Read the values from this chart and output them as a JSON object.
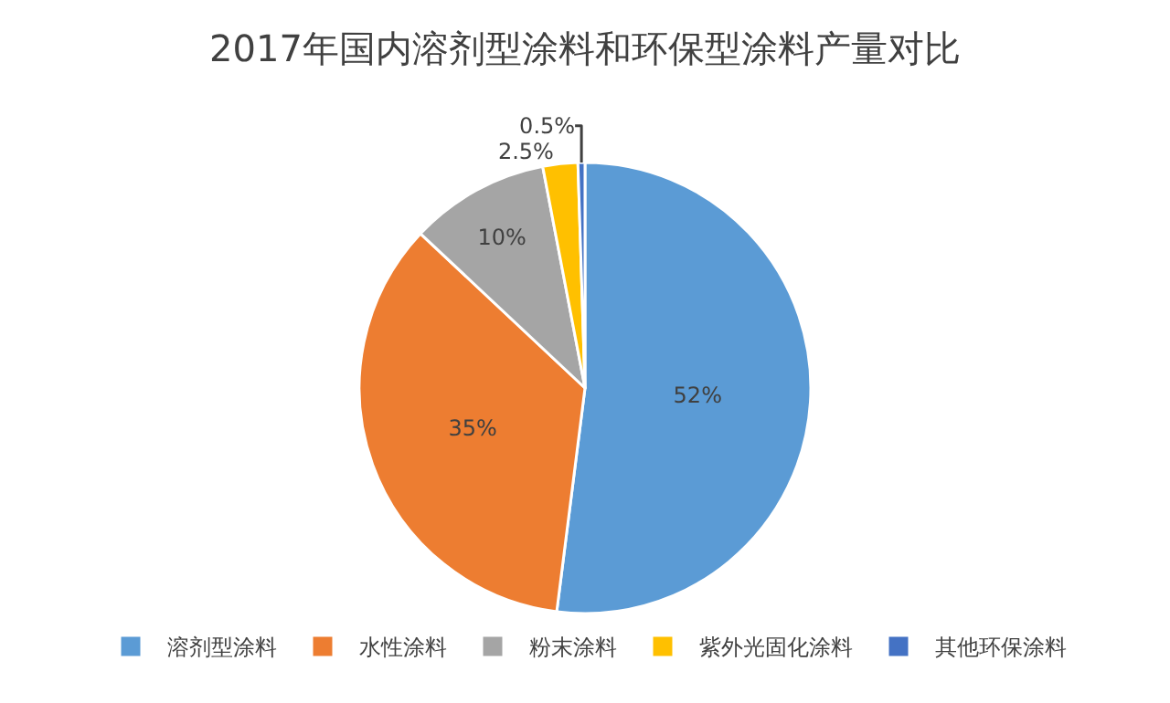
{
  "chart_data": {
    "type": "pie",
    "title": "2017年国内溶剂型涂料和环保型涂料产量对比",
    "categories": [
      "溶剂型涂料",
      "水性涂料",
      "粉末涂料",
      "紫外光固化涂料",
      "其他环保涂料"
    ],
    "values": [
      52,
      35,
      10,
      2.5,
      0.5
    ],
    "colors": [
      "#5b9bd5",
      "#ed7d31",
      "#a5a5a5",
      "#ffc000",
      "#4472c4"
    ],
    "value_labels": [
      "52%",
      "35%",
      "10%",
      "2.5%",
      "0.5%"
    ],
    "legend": "bottom"
  }
}
